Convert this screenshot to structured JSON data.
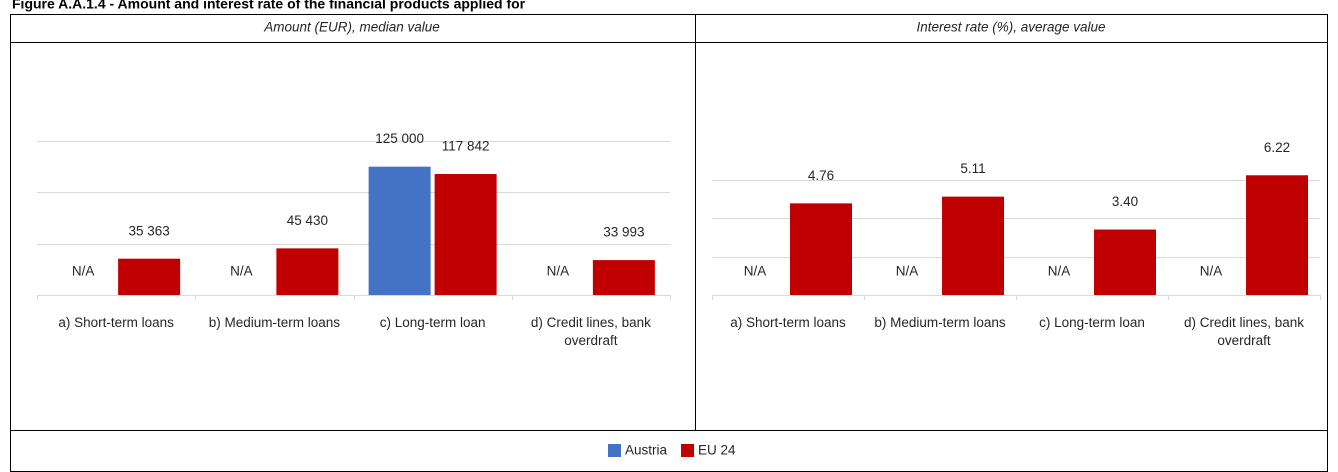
{
  "title": "Figure A.A.1.4 - Amount and interest rate of the financial products applied for",
  "chart_data": [
    {
      "type": "bar",
      "title": "Amount (EUR), median value",
      "categories": [
        "a) Short-term loans",
        "b) Medium-term loans",
        "c) Long-term loan",
        "d) Credit lines, bank overdraft"
      ],
      "series": [
        {
          "name": "Austria",
          "color": "#4472c4",
          "values": [
            null,
            null,
            125000,
            null
          ],
          "value_labels": [
            "N/A",
            "N/A",
            "125 000",
            "N/A"
          ]
        },
        {
          "name": "EU 24",
          "color": "#c00000",
          "values": [
            35363,
            45430,
            117842,
            33993
          ],
          "value_labels": [
            "35 363",
            "45 430",
            "117 842",
            "33 993"
          ]
        }
      ],
      "ylim": [
        0,
        150000
      ],
      "yticks": [
        0,
        50000,
        100000,
        150000
      ],
      "grid": true
    },
    {
      "type": "bar",
      "title": "Interest rate (%), average value",
      "categories": [
        "a) Short-term loans",
        "b) Medium-term loans",
        "c) Long-term loan",
        "d) Credit lines, bank overdraft"
      ],
      "series": [
        {
          "name": "Austria",
          "color": "#4472c4",
          "values": [
            null,
            null,
            null,
            null
          ],
          "value_labels": [
            "N/A",
            "N/A",
            "N/A",
            "N/A"
          ]
        },
        {
          "name": "EU 24",
          "color": "#c00000",
          "values": [
            4.76,
            5.11,
            3.4,
            6.22
          ],
          "value_labels": [
            "4.76",
            "5.11",
            "3.40",
            "6.22"
          ]
        }
      ],
      "ylim": [
        0,
        8
      ],
      "yticks": [
        0,
        2,
        4,
        6
      ],
      "grid": true
    }
  ]
}
